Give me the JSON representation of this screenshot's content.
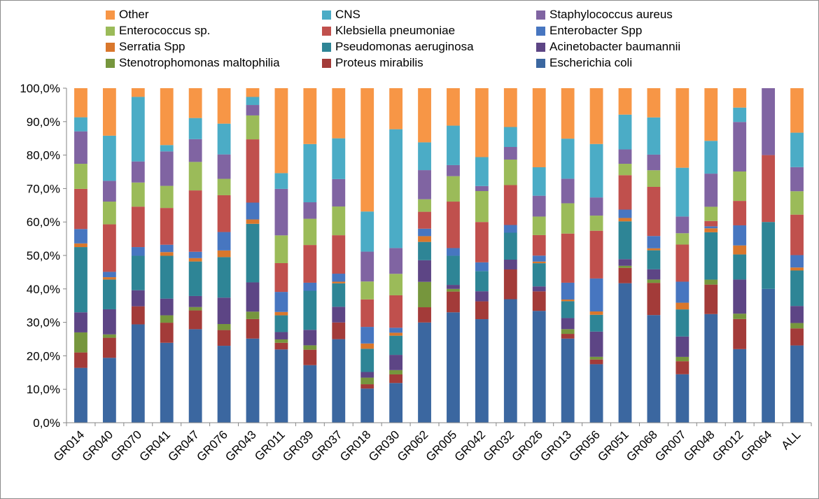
{
  "chart_data": {
    "type": "bar",
    "stacked": true,
    "percent": true,
    "title": "",
    "xlabel": "",
    "ylabel": "",
    "ylim": [
      0,
      100
    ],
    "y_ticks": [
      "0,0%",
      "10,0%",
      "20,0%",
      "30,0%",
      "40,0%",
      "50,0%",
      "60,0%",
      "70,0%",
      "80,0%",
      "90,0%",
      "100,0%"
    ],
    "grid": false,
    "legend_position": "top",
    "categories": [
      "GR014",
      "GR040",
      "GR070",
      "GR041",
      "GR047",
      "GR076",
      "GR043",
      "GR011",
      "GR039",
      "GR037",
      "GR018",
      "GR030",
      "GR062",
      "GR005",
      "GR042",
      "GR032",
      "GR026",
      "GR013",
      "GR056",
      "GR051",
      "GR068",
      "GR007",
      "GR048",
      "GR012",
      "GR064",
      "ALL"
    ],
    "legend_order": [
      "Other",
      "CNS",
      "Staphylococcus aureus",
      "Enterococcus sp.",
      "Klebsiella pneumoniae",
      "Enterobacter Spp",
      "Serratia Spp",
      "Pseudomonas aeruginosa",
      "Acinetobacter baumannii",
      "Stenotrophomonas maltophilia",
      "Proteus mirabilis",
      "Escherichia coli"
    ],
    "series": [
      {
        "name": "Escherichia coli",
        "color": "#3b67a0",
        "values": [
          16.4,
          19.4,
          29.4,
          23.9,
          27.9,
          23,
          25,
          21.9,
          17.1,
          25,
          10.3,
          12,
          29.6,
          33,
          30.8,
          35.3,
          33.8,
          25,
          17.4,
          41.7,
          32.4,
          14.5,
          32.8,
          22,
          40,
          23.1
        ]
      },
      {
        "name": "Proteus mirabilis",
        "color": "#a33b39",
        "values": [
          4.6,
          6,
          5.4,
          6,
          5.6,
          4.7,
          5.8,
          2,
          4.6,
          5,
          1.3,
          2.6,
          4.5,
          6.2,
          5.3,
          8.5,
          5.9,
          1.4,
          1.4,
          4.6,
          9.7,
          3.9,
          8.9,
          9,
          0,
          5.1
        ]
      },
      {
        "name": "Stenotrophomonas maltophilia",
        "color": "#76963d",
        "values": [
          6,
          1,
          0,
          2.2,
          1,
          1.8,
          2.2,
          1,
          1.3,
          0,
          2,
          1.3,
          7.5,
          0.8,
          0,
          0,
          0,
          1.4,
          0.8,
          0.6,
          1,
          1.3,
          1.5,
          1.6,
          0,
          1.6
        ]
      },
      {
        "name": "Acinetobacter baumannii",
        "color": "#5d4585",
        "values": [
          6,
          7.5,
          4.8,
          5,
          3.3,
          7.9,
          8.7,
          2.2,
          4.6,
          4.7,
          1.7,
          4.6,
          6.4,
          1.2,
          3,
          2.8,
          1.5,
          3.3,
          7.5,
          2,
          3.1,
          6.1,
          0,
          10.2,
          0,
          5.1
        ]
      },
      {
        "name": "Pseudomonas aeruginosa",
        "color": "#2e8596",
        "values": [
          19.5,
          8.9,
          10.3,
          12.8,
          10.3,
          12.1,
          17.4,
          5,
          11.6,
          7,
          7,
          5.8,
          5.4,
          8.7,
          6,
          7.7,
          7,
          5,
          5,
          11.3,
          5.7,
          8.1,
          14.3,
          7.5,
          20,
          10.6
        ]
      },
      {
        "name": "Serratia Spp",
        "color": "#d9772c",
        "values": [
          1.1,
          0.7,
          0,
          1.1,
          1,
          2,
          1.3,
          1,
          0,
          0.5,
          1.6,
          0.9,
          1.7,
          0,
          0,
          0,
          0.5,
          0.5,
          1,
          1,
          0.6,
          2,
          1.2,
          2.7,
          0,
          0.9
        ]
      },
      {
        "name": "Enterobacter Spp",
        "color": "#4776c0",
        "values": [
          4.3,
          1.6,
          2.6,
          2.2,
          1.9,
          5.5,
          5,
          6,
          2.4,
          2.4,
          5,
          1.5,
          2.2,
          2.3,
          2.6,
          2.2,
          1.8,
          5,
          9.8,
          2.5,
          3.7,
          6.3,
          0.6,
          6,
          0,
          3.7
        ]
      },
      {
        "name": "Klebsiella pneumoniae",
        "color": "#c0504d",
        "values": [
          12,
          14.2,
          12.1,
          11,
          18.3,
          11,
          18.8,
          8.6,
          11.2,
          11.5,
          8.3,
          9.8,
          5,
          13.9,
          12,
          11.4,
          6.2,
          14.6,
          14.2,
          10.3,
          14.8,
          11.1,
          1.6,
          7.3,
          20,
          12.1
        ]
      },
      {
        "name": "Enterococcus sp.",
        "color": "#9bbb59",
        "values": [
          7.5,
          6.8,
          7.2,
          6.6,
          8.5,
          4.9,
          7.1,
          8.3,
          7.8,
          8.6,
          5.4,
          6.5,
          3.7,
          7.6,
          9.2,
          7.3,
          5.6,
          9,
          4.5,
          3.4,
          5,
          3.4,
          4.3,
          8.8,
          0,
          7
        ]
      },
      {
        "name": "Staphylococcus aureus",
        "color": "#8064a2",
        "values": [
          9.7,
          6.2,
          6.3,
          10.3,
          6.8,
          7.3,
          3.1,
          13.9,
          4.9,
          8.2,
          9,
          7.8,
          8.6,
          3.3,
          1.5,
          3.6,
          6.3,
          7.3,
          5.4,
          4.3,
          4.7,
          5,
          10,
          14.8,
          20,
          7.2
        ]
      },
      {
        "name": "CNS",
        "color": "#4bacc6",
        "values": [
          4.2,
          13.5,
          19.3,
          1.9,
          6.3,
          9.2,
          2.4,
          4.7,
          17.3,
          12.2,
          12.1,
          35.9,
          8.2,
          11.8,
          8.6,
          5.7,
          8.6,
          11.9,
          15.9,
          10.4,
          11.2,
          14.6,
          9.9,
          4.3,
          0,
          10.3
        ]
      },
      {
        "name": "Other",
        "color": "#f79646",
        "values": [
          8.7,
          14.2,
          2.6,
          17,
          8.9,
          10.6,
          2.6,
          25.4,
          16.6,
          15,
          37.2,
          12.4,
          16,
          11.2,
          20.5,
          11.1,
          23.9,
          15,
          16.6,
          7.9,
          8.8,
          23.8,
          15.9,
          5.8,
          0,
          13.3
        ]
      }
    ]
  }
}
